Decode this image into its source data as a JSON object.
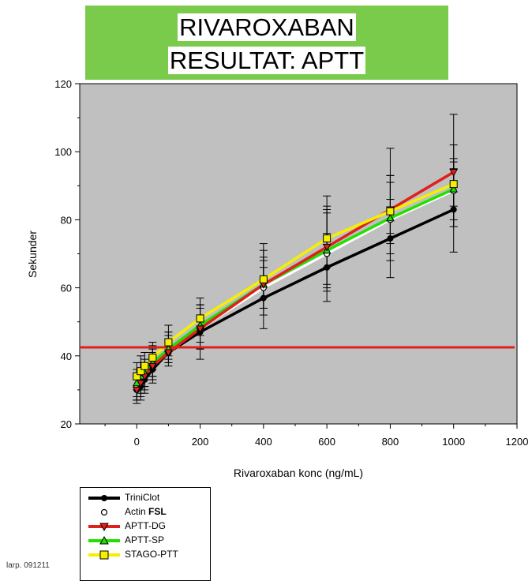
{
  "title": {
    "line1": "RIVAROXABAN",
    "line2": "RESULTAT: APTT"
  },
  "colors": {
    "banner": "#7acb4c",
    "plot_bg": "#c0c0c0",
    "reference_line": "#e0201c"
  },
  "footnote": "larp. 091211",
  "chart_data": {
    "type": "line",
    "title": "RIVAROXABAN RESULTAT: APTT",
    "xlabel": "Rivaroxaban konc (ng/mL)",
    "ylabel": "Sekunder",
    "xlim": [
      -180,
      1200
    ],
    "ylim": [
      20,
      120
    ],
    "x_ticks": [
      0,
      200,
      400,
      600,
      800,
      1000,
      1200
    ],
    "y_ticks": [
      20,
      40,
      60,
      80,
      100,
      120
    ],
    "grid": false,
    "legend_position": "bottom-left",
    "reference_line": {
      "y": 42.5,
      "color": "#e0201c"
    },
    "x": [
      0,
      12.5,
      25,
      50,
      100,
      200,
      400,
      600,
      800,
      1000
    ],
    "series": [
      {
        "name": "TriniClot",
        "color": "#000000",
        "marker": "circle-filled",
        "values": [
          30,
          31,
          33,
          36,
          41,
          47,
          57,
          66,
          74.5,
          83
        ],
        "err_low": [
          26,
          27,
          29,
          32,
          37,
          39,
          48,
          56,
          63,
          70.5
        ],
        "err_high": [
          34,
          35,
          37,
          40,
          45,
          54,
          66,
          76,
          86,
          95
        ]
      },
      {
        "name": "Actin",
        "name_bold": "FSL",
        "color": "#ffffff",
        "marker": "circle-open",
        "values": [
          31,
          32,
          34,
          37,
          41,
          48,
          60,
          70,
          80,
          88.5
        ],
        "err_low": [
          27,
          28,
          30,
          33,
          38,
          42,
          52,
          59,
          68,
          78
        ],
        "err_high": [
          35,
          36,
          38,
          41,
          46,
          55,
          69,
          83,
          93,
          102
        ]
      },
      {
        "name": "APTT-DG",
        "color": "#e0201c",
        "marker": "triangle-down",
        "values": [
          30,
          32,
          34,
          37,
          41,
          48,
          61,
          72,
          83,
          94
        ],
        "err_low": [
          27,
          29,
          31,
          34,
          39,
          42,
          54,
          60,
          73,
          80
        ],
        "err_high": [
          34,
          36,
          38,
          42,
          47,
          55,
          71,
          87,
          101,
          111
        ]
      },
      {
        "name": "APTT-SP",
        "color": "#22e000",
        "marker": "triangle-up",
        "values": [
          32,
          34,
          35,
          38,
          42,
          49,
          61,
          71,
          80.5,
          89
        ],
        "err_low": [
          28,
          30,
          31,
          34,
          38,
          44,
          54,
          61,
          70,
          78
        ],
        "err_high": [
          36,
          38,
          39,
          43,
          47,
          55,
          68,
          82,
          91,
          98
        ]
      },
      {
        "name": "STAGO-PTT",
        "color": "#f5f000",
        "marker": "square",
        "values": [
          34,
          35.5,
          37,
          39.5,
          44,
          51,
          62.5,
          74.5,
          82.5,
          90.5
        ],
        "err_low": [
          30,
          31,
          33,
          36,
          40,
          46,
          57,
          66,
          76,
          84
        ],
        "err_high": [
          38,
          40,
          41,
          44,
          49,
          57,
          73,
          84,
          93,
          97
        ]
      }
    ]
  }
}
